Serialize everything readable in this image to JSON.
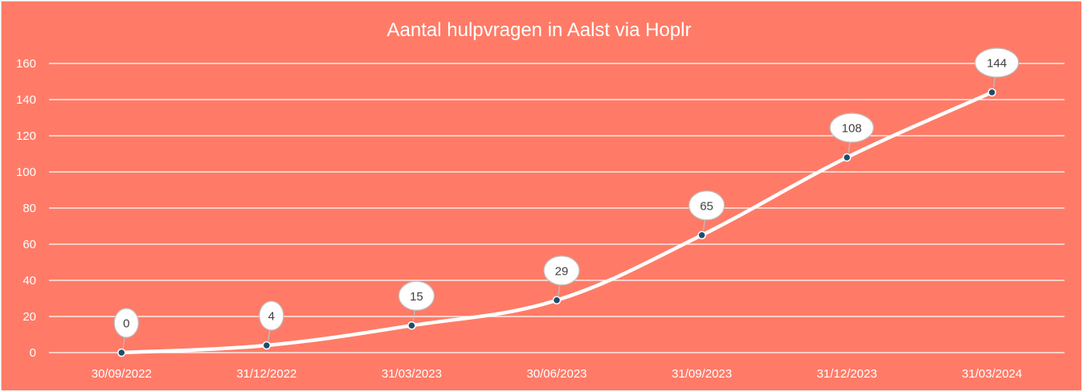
{
  "chart_data": {
    "type": "line",
    "title": "Aantal hulpvragen in Aalst via Hoplr",
    "categories": [
      "30/09/2022",
      "31/12/2022",
      "31/03/2023",
      "30/06/2023",
      "31/09/2023",
      "31/12/2023",
      "31/03/2024"
    ],
    "series": [
      {
        "values": [
          0,
          4,
          15,
          29,
          65,
          108,
          144
        ]
      }
    ],
    "data_labels": [
      "0",
      "4",
      "15",
      "29",
      "65",
      "108",
      "144"
    ],
    "ylim": [
      0,
      160
    ],
    "yticks": [
      0,
      20,
      40,
      60,
      80,
      100,
      120,
      140,
      160
    ],
    "grid": true,
    "legend": "none",
    "colors": {
      "background": "#FF7B67",
      "line": "#FFFFFF",
      "marker": "#1F4E6B",
      "gridline": "#FFFFFF",
      "text": "#FFFFFF",
      "label_fill": "#FFFFFF",
      "label_border": "#BFBFBF",
      "label_text": "#404040"
    }
  }
}
